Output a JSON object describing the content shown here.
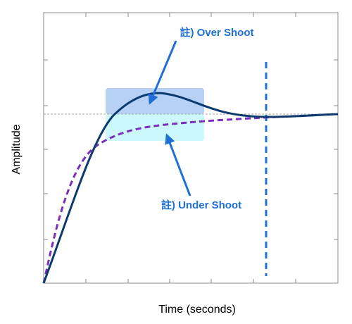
{
  "x_label": "Time (seconds)",
  "y_label": "Amplitude",
  "annotations": [
    "註) Over Shoot",
    "註) Under Shoot"
  ]
}
